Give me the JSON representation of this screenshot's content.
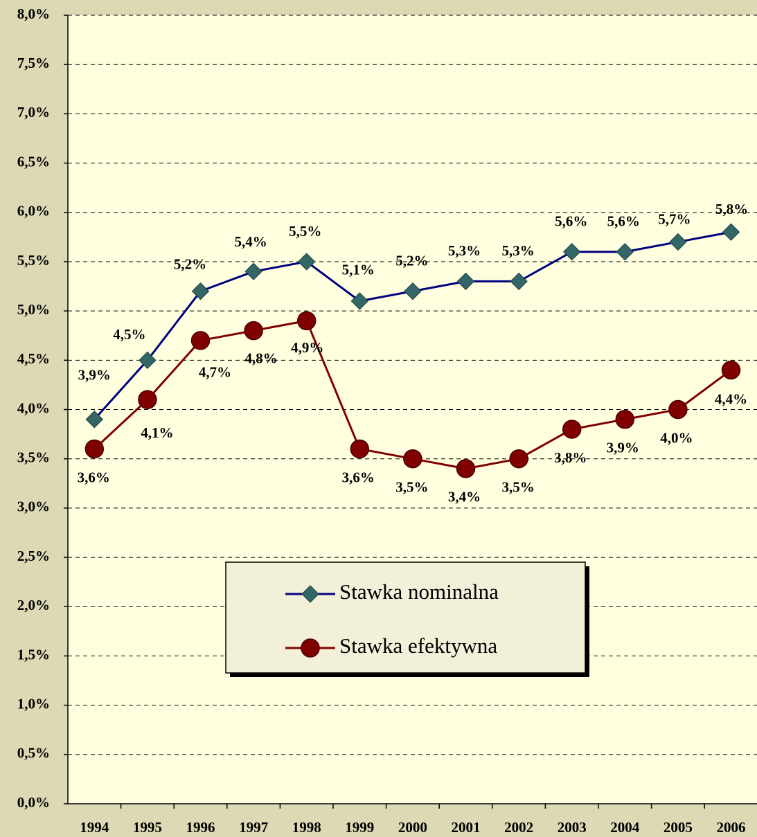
{
  "chart_data": {
    "type": "line",
    "categories": [
      "1994",
      "1995",
      "1996",
      "1997",
      "1998",
      "1999",
      "2000",
      "2001",
      "2002",
      "2003",
      "2004",
      "2005",
      "2006"
    ],
    "series": [
      {
        "name": "Stawka nominalna",
        "color": "#000080",
        "marker_color": "#336666",
        "marker": "diamond",
        "values": [
          3.9,
          4.5,
          5.2,
          5.4,
          5.5,
          5.1,
          5.2,
          5.3,
          5.3,
          5.6,
          5.6,
          5.7,
          5.8
        ],
        "value_labels": [
          "3,9%",
          "4,5%",
          "5,2%",
          "5,4%",
          "5,5%",
          "5,1%",
          "5,2%",
          "5,3%",
          "5,3%",
          "5,6%",
          "5,6%",
          "5,7%",
          "5,8%"
        ]
      },
      {
        "name": "Stawka efektywna",
        "color": "#800000",
        "marker_color": "#800000",
        "marker": "circle",
        "values": [
          3.6,
          4.1,
          4.7,
          4.8,
          4.9,
          3.6,
          3.5,
          3.4,
          3.5,
          3.8,
          3.9,
          4.0,
          4.4
        ],
        "value_labels": [
          "3,6%",
          "4,1%",
          "4,7%",
          "4,8%",
          "4,9%",
          "3,6%",
          "3,5%",
          "3,4%",
          "3,5%",
          "3,8%",
          "3,9%",
          "4,0%",
          "4,4%"
        ]
      }
    ],
    "ylim": [
      0,
      8
    ],
    "yticks": [
      {
        "value": 0,
        "label": "0,0%"
      },
      {
        "value": 0.5,
        "label": "0,5%"
      },
      {
        "value": 1,
        "label": "1,0%"
      },
      {
        "value": 1.5,
        "label": "1,5%"
      },
      {
        "value": 2,
        "label": "2,0%"
      },
      {
        "value": 2.5,
        "label": "2,5%"
      },
      {
        "value": 3,
        "label": "3,0%"
      },
      {
        "value": 3.5,
        "label": "3,5%"
      },
      {
        "value": 4,
        "label": "4,0%"
      },
      {
        "value": 4.5,
        "label": "4,5%"
      },
      {
        "value": 5,
        "label": "5,0%"
      },
      {
        "value": 5.5,
        "label": "5,5%"
      },
      {
        "value": 6,
        "label": "6,0%"
      },
      {
        "value": 6.5,
        "label": "6,5%"
      },
      {
        "value": 7,
        "label": "7,0%"
      },
      {
        "value": 7.5,
        "label": "7,5%"
      },
      {
        "value": 8,
        "label": "8,0%"
      }
    ],
    "grid": true,
    "legend": "center"
  }
}
